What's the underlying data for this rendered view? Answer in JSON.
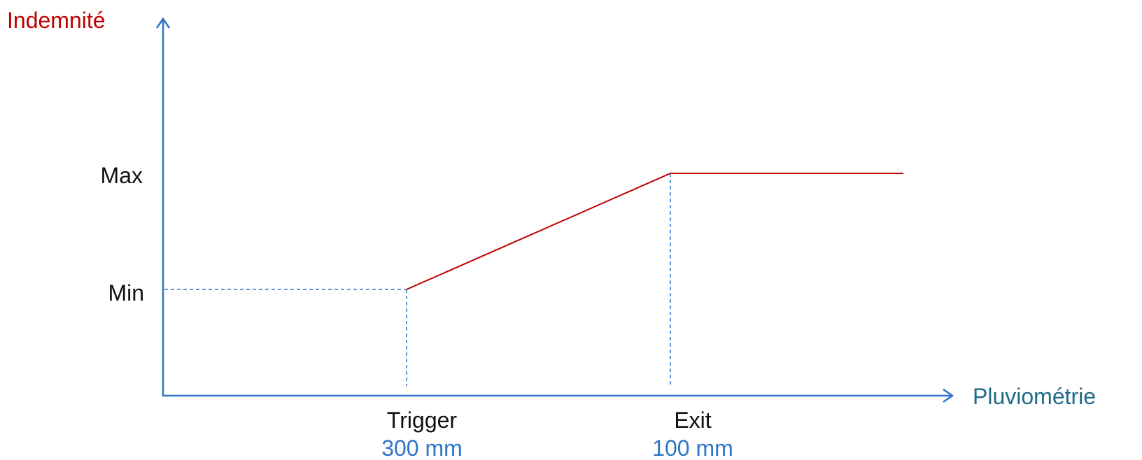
{
  "chart_data": {
    "type": "line",
    "y_axis_label": "Indemnité",
    "x_axis_label": "Pluviométrie",
    "y_levels": {
      "max_label": "Max",
      "min_label": "Min"
    },
    "x_markers": [
      {
        "label": "Trigger",
        "value_label": "300 mm"
      },
      {
        "label": "Exit",
        "value_label": "100 mm"
      }
    ],
    "payout_curve": [
      {
        "x": "Trigger",
        "y": "Min"
      },
      {
        "x": "Exit",
        "y": "Max"
      },
      {
        "x": "beyond Exit",
        "y": "Max"
      }
    ]
  },
  "colors": {
    "axis": "#2e75c8",
    "curve": "#c00000",
    "y_axis_label": "#c00000",
    "x_axis_label": "#1f6a8a",
    "marker_value": "#2e75c8",
    "text": "#111111"
  }
}
